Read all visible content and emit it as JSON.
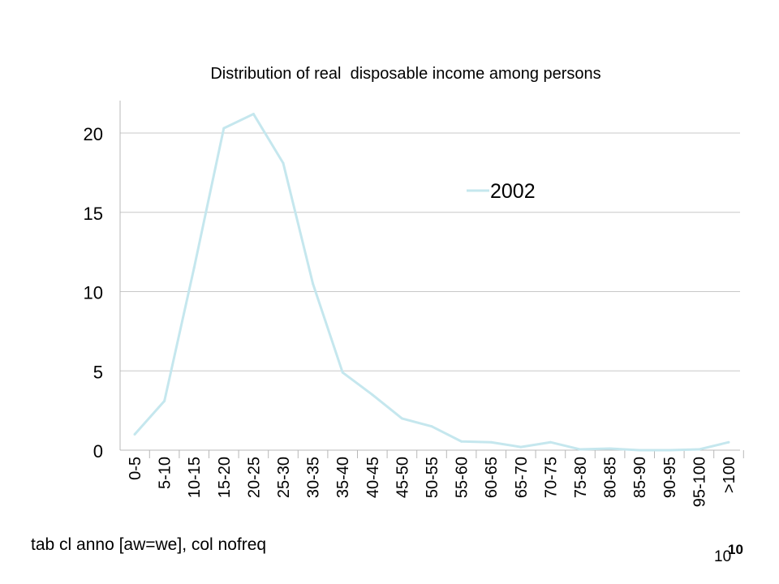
{
  "chart_data": {
    "type": "line",
    "title": "Distribution of real  disposable income among persons",
    "categories": [
      "0-5",
      "5-10",
      "10-15",
      "15-20",
      "20-25",
      "25-30",
      "30-35",
      "35-40",
      "40-45",
      "45-50",
      "50-55",
      "55-60",
      "60-65",
      "65-70",
      "70-75",
      "75-80",
      "80-85",
      "85-90",
      "90-95",
      "95-100",
      ">100"
    ],
    "series": [
      {
        "name": "2002",
        "color": "#c5e7ee",
        "values": [
          1.0,
          3.1,
          11.5,
          20.3,
          21.2,
          18.1,
          10.5,
          4.9,
          3.5,
          2.0,
          1.5,
          0.55,
          0.5,
          0.2,
          0.5,
          0.05,
          0.1,
          0.0,
          0.0,
          0.05,
          0.5
        ]
      }
    ],
    "ylim": [
      0,
      22
    ],
    "yticks": [
      0,
      5,
      10,
      15,
      20
    ],
    "grid": true,
    "legend": "top-right"
  },
  "footer": {
    "command": "tab cl anno [aw=we], col nofreq",
    "page_bold": "10",
    "page": "10"
  }
}
